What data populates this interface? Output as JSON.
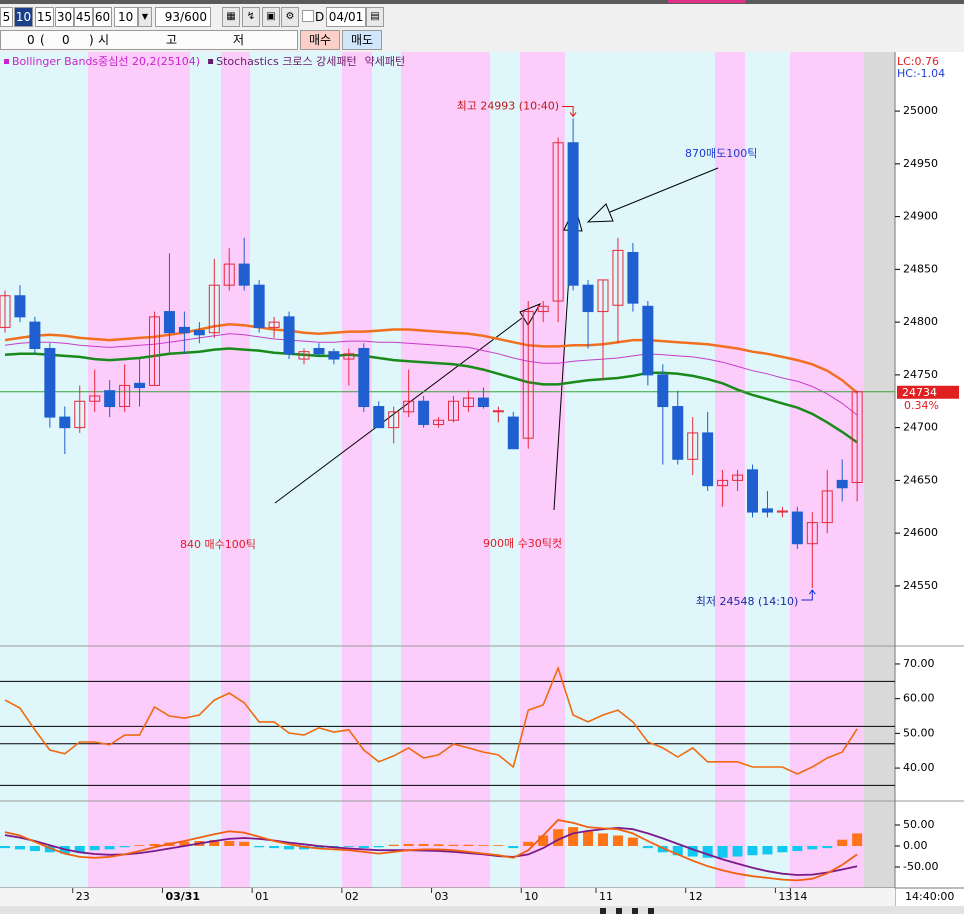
{
  "toolbar": {
    "periods": [
      "5",
      "10",
      "15",
      "30",
      "45",
      "60"
    ],
    "period_select": "10",
    "count": "93/600",
    "date_check": "D",
    "date": "04/01"
  },
  "order_bar": {
    "fields": [
      "0",
      "(",
      "0",
      ")",
      "시",
      "고",
      "저"
    ],
    "buy": "매수",
    "sell": "매도"
  },
  "chart_data": [
    {
      "type": "candlestick",
      "legend": [
        {
          "text": "Bollinger Bands중심선 20,2(25104)",
          "color": "#cc22cc"
        },
        {
          "text": "Stochastics 크로스 강세패턴",
          "color": "#6a1a6a"
        },
        {
          "text": "약세패턴",
          "color": "#6a1a6a"
        }
      ],
      "corner_notes": [
        {
          "text": "LC:0.76",
          "color": "#e02020"
        },
        {
          "text": "HC:-1.04",
          "color": "#2040d0"
        }
      ],
      "categories": [
        null,
        null,
        null,
        null,
        null,
        "23",
        null,
        null,
        null,
        null,
        null,
        "03/31",
        null,
        null,
        null,
        null,
        null,
        "01",
        null,
        null,
        null,
        null,
        null,
        "02",
        null,
        null,
        null,
        null,
        null,
        "03",
        null,
        null,
        null,
        null,
        null,
        "10",
        null,
        null,
        null,
        null,
        "11",
        null,
        null,
        null,
        null,
        null,
        "12",
        null,
        null,
        null,
        null,
        null,
        "13",
        "14",
        null,
        null,
        null,
        null
      ],
      "time_label": "14:40:00",
      "open": [
        24795,
        24825,
        24800,
        24775,
        24710,
        24700,
        24725,
        24735,
        24720,
        24742,
        24740,
        24810,
        24795,
        24792,
        24790,
        24835,
        24855,
        24835,
        24795,
        24805,
        24765,
        24775,
        24772,
        24765,
        24775,
        24720,
        24700,
        24715,
        24725,
        24703,
        24707,
        24720,
        24728,
        24715,
        24710,
        24690,
        24810,
        24820,
        24970,
        24835,
        24810,
        24816,
        24866,
        24815,
        24750,
        24720,
        24670,
        24695,
        24645,
        24650,
        24660,
        24623,
        24620,
        24620,
        24590,
        24610,
        24650,
        24648
      ],
      "high": [
        24830,
        24835,
        24805,
        24780,
        24720,
        24740,
        24755,
        24745,
        24760,
        24765,
        24810,
        24865,
        24810,
        24800,
        24860,
        24870,
        24880,
        24840,
        24805,
        24810,
        24775,
        24780,
        24775,
        24775,
        24780,
        24725,
        24720,
        24755,
        24730,
        24710,
        24730,
        24735,
        24738,
        24720,
        24715,
        24820,
        24820,
        24975,
        24993,
        24840,
        24840,
        24880,
        24875,
        24820,
        24760,
        24735,
        24710,
        24715,
        24660,
        24660,
        24665,
        24640,
        24625,
        24625,
        24620,
        24660,
        24670,
        24735
      ],
      "low": [
        24790,
        24800,
        24770,
        24700,
        24675,
        24695,
        24715,
        24710,
        24715,
        24720,
        24740,
        24770,
        24770,
        24780,
        24785,
        24830,
        24830,
        24790,
        24785,
        24765,
        24760,
        24768,
        24760,
        24740,
        24715,
        24700,
        24685,
        24710,
        24700,
        24700,
        24705,
        24715,
        24718,
        24705,
        24680,
        24680,
        24800,
        24800,
        24830,
        24775,
        24745,
        24780,
        24810,
        24740,
        24665,
        24665,
        24655,
        24640,
        24625,
        24640,
        24615,
        24615,
        24615,
        24585,
        24548,
        24600,
        24630,
        24630
      ],
      "close": [
        24825,
        24805,
        24775,
        24710,
        24700,
        24725,
        24730,
        24720,
        24740,
        24738,
        24805,
        24790,
        24790,
        24788,
        24835,
        24855,
        24835,
        24795,
        24800,
        24770,
        24772,
        24770,
        24765,
        24770,
        24720,
        24700,
        24715,
        24725,
        24703,
        24707,
        24725,
        24728,
        24720,
        24716,
        24680,
        24810,
        24815,
        24970,
        24835,
        24810,
        24840,
        24868,
        24818,
        24750,
        24720,
        24670,
        24695,
        24645,
        24650,
        24655,
        24620,
        24620,
        24621,
        24590,
        24610,
        24640,
        24643,
        24734
      ],
      "up_color": "#e8283c",
      "down_color": "#1f5fd0",
      "lines": [
        {
          "color": "#f07020",
          "values": [
            24783,
            24785,
            24787,
            24788,
            24787,
            24785,
            24784,
            24783,
            24784,
            24785,
            24786,
            24788,
            24790,
            24793,
            24796,
            24798,
            24797,
            24795,
            24793,
            24792,
            24790,
            24789,
            24790,
            24791,
            24791,
            24792,
            24793,
            24793,
            24792,
            24791,
            24790,
            24789,
            24787,
            24784,
            24781,
            24778,
            24777,
            24777,
            24778,
            24778,
            24779,
            24781,
            24783,
            24783,
            24782,
            24781,
            24780,
            24779,
            24777,
            24775,
            24772,
            24770,
            24767,
            24764,
            24760,
            24754,
            24745,
            24733
          ]
        },
        {
          "color": "#c83cc8",
          "values": [
            24778,
            24780,
            24781,
            24781,
            24780,
            24778,
            24777,
            24776,
            24777,
            24778,
            24779,
            24781,
            24783,
            24785,
            24787,
            24789,
            24788,
            24786,
            24784,
            24783,
            24782,
            24781,
            24781,
            24782,
            24782,
            24781,
            24781,
            24780,
            24779,
            24778,
            24777,
            24776,
            24773,
            24770,
            24766,
            24763,
            24761,
            24761,
            24763,
            24764,
            24765,
            24766,
            24768,
            24770,
            24769,
            24768,
            24767,
            24765,
            24762,
            24758,
            24754,
            24751,
            24747,
            24744,
            24739,
            24732,
            24723,
            24712
          ]
        },
        {
          "color": "#1a8a1a",
          "values": [
            24769,
            24770,
            24770,
            24769,
            24768,
            24767,
            24765,
            24764,
            24765,
            24766,
            24768,
            24770,
            24771,
            24772,
            24774,
            24775,
            24774,
            24773,
            24771,
            24770,
            24769,
            24768,
            24768,
            24769,
            24768,
            24766,
            24764,
            24763,
            24762,
            24761,
            24760,
            24758,
            24755,
            24751,
            24747,
            24743,
            24741,
            24741,
            24743,
            24745,
            24746,
            24747,
            24749,
            24752,
            24752,
            24751,
            24749,
            24746,
            24742,
            24736,
            24731,
            24727,
            24723,
            24719,
            24713,
            24705,
            24696,
            24686
          ]
        }
      ],
      "last": {
        "value": 24734,
        "label": "24734",
        "color": "#3aa03a"
      },
      "change": {
        "value": 0.34,
        "label": "0.34%"
      },
      "high_note": "최고 24993 (10:40)",
      "low_note": "최저 24548 (14:10)",
      "comments": [
        {
          "text": "870매도100틱",
          "color": "#1a3ccc"
        },
        {
          "text": "840 매수100틱",
          "color": "#e01a2a"
        },
        {
          "text": "900매 수30틱컷",
          "color": "#e01a2a"
        }
      ],
      "ylim": [
        24494,
        25056
      ],
      "yticks": [
        25000,
        24950,
        24900,
        24850,
        24800,
        24750,
        24700,
        24650,
        24600,
        24550
      ]
    },
    {
      "type": "line",
      "series": [
        {
          "color": "#f06a10",
          "values": [
            59.6,
            57.3,
            51.0,
            45.2,
            44.1,
            47.5,
            47.5,
            46.7,
            49.5,
            49.5,
            57.6,
            55.0,
            54.4,
            55.3,
            59.6,
            61.6,
            58.8,
            53.3,
            53.3,
            50.1,
            49.5,
            51.6,
            50.4,
            51.0,
            45.2,
            41.8,
            43.5,
            45.8,
            42.9,
            43.8,
            46.9,
            45.8,
            44.6,
            43.8,
            40.3,
            56.7,
            58.2,
            68.8,
            55.3,
            53.3,
            55.3,
            56.7,
            53.3,
            47.5,
            45.8,
            43.2,
            45.8,
            41.8,
            41.8,
            41.8,
            40.3,
            40.3,
            40.3,
            38.3,
            40.3,
            42.9,
            44.6,
            51.3
          ]
        }
      ],
      "levels": [
        65,
        52,
        47,
        35
      ],
      "ylim": [
        30.8,
        74.6
      ],
      "yticks": [
        {
          "value": 70,
          "label": "70.00"
        },
        {
          "value": 60,
          "label": "60.00"
        },
        {
          "value": 50,
          "label": "50.00"
        },
        {
          "value": 40,
          "label": "40.00"
        }
      ]
    },
    {
      "type": "macd",
      "values": [
        -5,
        -8,
        -12,
        -15,
        -18,
        -15,
        -10,
        -8,
        -3,
        2,
        5,
        8,
        10,
        12,
        14,
        12,
        10,
        -3,
        -5,
        -8,
        -8,
        -6,
        -4,
        -2,
        -5,
        -3,
        3,
        5,
        5,
        4,
        3,
        3,
        2,
        2,
        -5,
        10,
        25,
        40,
        45,
        35,
        30,
        25,
        20,
        -5,
        -15,
        -22,
        -25,
        -28,
        -28,
        -25,
        -22,
        -20,
        -15,
        -12,
        -8,
        -5,
        15,
        30
      ],
      "pos_color": "#ff7418",
      "neg_color": "#10c8f0",
      "series": [
        {
          "color": "#7a1a8a",
          "values": [
            26,
            20,
            12,
            2,
            -8,
            -15,
            -19,
            -21,
            -20,
            -17,
            -12,
            -6,
            0,
            6,
            12,
            17,
            19,
            17,
            13,
            8,
            4,
            0,
            -3,
            -6,
            -8,
            -10,
            -10,
            -10,
            -11,
            -12,
            -14,
            -17,
            -20,
            -24,
            -26,
            -20,
            -5,
            15,
            30,
            36,
            40,
            43,
            40,
            30,
            18,
            5,
            -8,
            -20,
            -32,
            -42,
            -52,
            -60,
            -66,
            -69,
            -68,
            -63,
            -56,
            -48
          ]
        },
        {
          "color": "#f06010",
          "values": [
            33,
            25,
            10,
            -5,
            -18,
            -26,
            -28,
            -26,
            -20,
            -12,
            -3,
            5,
            12,
            20,
            28,
            35,
            32,
            22,
            12,
            4,
            -2,
            -6,
            -8,
            -10,
            -14,
            -18,
            -14,
            -10,
            -8,
            -8,
            -10,
            -14,
            -18,
            -22,
            -28,
            -10,
            25,
            62,
            55,
            45,
            42,
            40,
            30,
            12,
            -5,
            -20,
            -35,
            -48,
            -58,
            -66,
            -72,
            -76,
            -80,
            -82,
            -78,
            -65,
            -45,
            -20
          ]
        }
      ],
      "ylim": [
        -100,
        102.4
      ],
      "yticks": [
        {
          "value": 50,
          "label": "50.00"
        },
        {
          "value": 0,
          "label": "0.00"
        },
        {
          "value": -50,
          "label": "-50.00"
        }
      ]
    }
  ]
}
